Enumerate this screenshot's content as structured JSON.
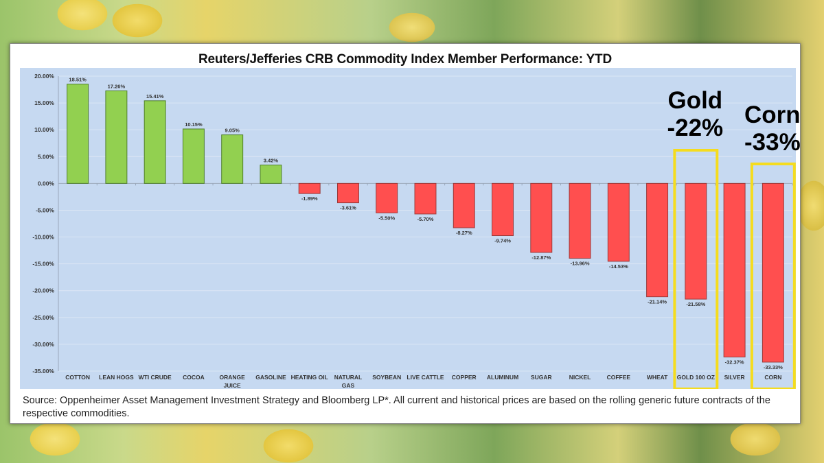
{
  "chart_data": {
    "type": "bar",
    "title": "Reuters/Jefferies CRB Commodity Index Member Performance: YTD",
    "xlabel": "",
    "ylabel": "",
    "ylim": [
      -35,
      20
    ],
    "yticks": [
      "20.00%",
      "15.00%",
      "10.00%",
      "5.00%",
      "0.00%",
      "-5.00%",
      "-10.00%",
      "-15.00%",
      "-20.00%",
      "-25.00%",
      "-30.00%",
      "-35.00%"
    ],
    "ytick_values": [
      20,
      15,
      10,
      5,
      0,
      -5,
      -10,
      -15,
      -20,
      -25,
      -30,
      -35
    ],
    "grid": true,
    "categories": [
      "COTTON",
      "LEAN HOGS",
      "WTI CRUDE",
      "COCOA",
      "ORANGE JUICE",
      "GASOLINE",
      "HEATING OIL",
      "NATURAL GAS",
      "SOYBEAN",
      "LIVE CATTLE",
      "COPPER",
      "ALUMINUM",
      "SUGAR",
      "NICKEL",
      "COFFEE",
      "WHEAT",
      "GOLD 100 OZ",
      "SILVER",
      "CORN"
    ],
    "values": [
      18.51,
      17.26,
      15.41,
      10.15,
      9.05,
      3.42,
      -1.89,
      -3.61,
      -5.5,
      -5.7,
      -8.27,
      -9.74,
      -12.87,
      -13.96,
      -14.53,
      -21.14,
      -21.58,
      -32.37,
      -33.33
    ],
    "data_labels": [
      "18.51%",
      "17.26%",
      "15.41%",
      "10.15%",
      "9.05%",
      "3.42%",
      "-1.89%",
      "-3.61%",
      "-5.50%",
      "-5.70%",
      "-8.27%",
      "-9.74%",
      "-12.87%",
      "-13.96%",
      "-14.53%",
      "-21.14%",
      "-21.58%",
      "-32.37%",
      "-33.33%"
    ],
    "colors": {
      "positive": "#92d050",
      "negative": "#ff4f4f",
      "plot_bg": "#c6d9f1",
      "highlight_box": "#f5dc1e"
    },
    "highlighted": [
      "GOLD 100 OZ",
      "CORN"
    ],
    "annotations": [
      {
        "target": "GOLD 100 OZ",
        "line1": "Gold",
        "line2": "-22%"
      },
      {
        "target": "CORN",
        "line1": "Corn",
        "line2": "-33%"
      }
    ]
  },
  "source_note": "Source: Oppenheimer Asset Management Investment Strategy and Bloomberg LP*. All current and historical prices are based on the rolling generic future contracts of the respective commodities."
}
